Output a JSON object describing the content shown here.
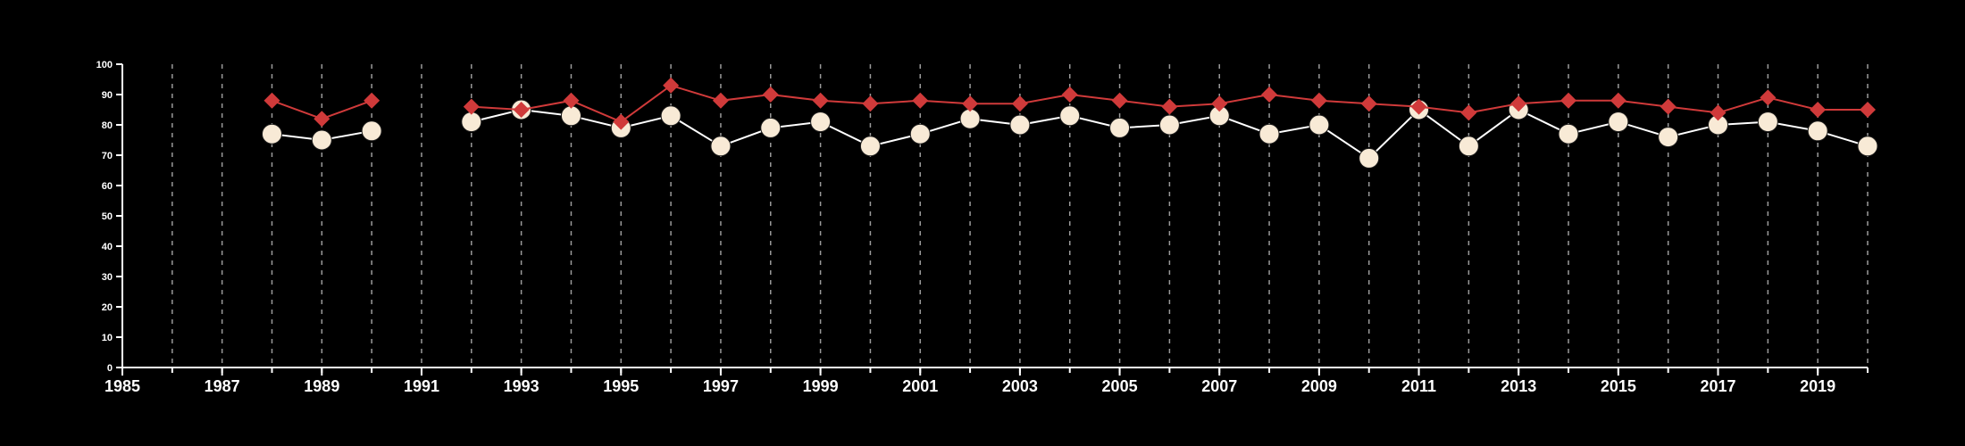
{
  "chart_data": {
    "type": "line",
    "ylim": [
      0,
      100
    ],
    "xlim": [
      1985,
      2020
    ],
    "y_ticks": [
      0,
      10,
      20,
      30,
      40,
      50,
      60,
      70,
      80,
      90,
      100
    ],
    "x_ticks": [
      1985,
      1987,
      1989,
      1991,
      1993,
      1995,
      1997,
      1999,
      2001,
      2003,
      2005,
      2007,
      2009,
      2011,
      2013,
      2015,
      2017,
      2019
    ],
    "grid": "vertical dashed lines at each year",
    "background": "#000000",
    "series": [
      {
        "marker": "diamond",
        "color": "#d03a3a",
        "x": [
          1988,
          1989,
          1990,
          1992,
          1993,
          1994,
          1995,
          1996,
          1997,
          1998,
          1999,
          2000,
          2001,
          2002,
          2003,
          2004,
          2005,
          2006,
          2007,
          2008,
          2009,
          2010,
          2011,
          2012,
          2013,
          2014,
          2015,
          2016,
          2017,
          2018,
          2019,
          2020
        ],
        "values": [
          88,
          82,
          88,
          86,
          85,
          88,
          81,
          93,
          88,
          90,
          88,
          87,
          88,
          87,
          87,
          90,
          88,
          86,
          87,
          90,
          88,
          87,
          86,
          84,
          87,
          88,
          88,
          86,
          84,
          89,
          85,
          85
        ]
      },
      {
        "marker": "circle",
        "color": "#f8ead6",
        "x": [
          1988,
          1989,
          1990,
          1992,
          1993,
          1994,
          1995,
          1996,
          1997,
          1998,
          1999,
          2000,
          2001,
          2002,
          2003,
          2004,
          2005,
          2006,
          2007,
          2008,
          2009,
          2010,
          2011,
          2012,
          2013,
          2014,
          2015,
          2016,
          2017,
          2018,
          2019,
          2020
        ],
        "values": [
          77,
          75,
          78,
          81,
          85,
          83,
          79,
          83,
          73,
          79,
          81,
          73,
          77,
          82,
          80,
          83,
          79,
          80,
          83,
          77,
          80,
          69,
          85,
          73,
          85,
          77,
          81,
          76,
          80,
          81,
          78,
          73
        ]
      }
    ]
  }
}
